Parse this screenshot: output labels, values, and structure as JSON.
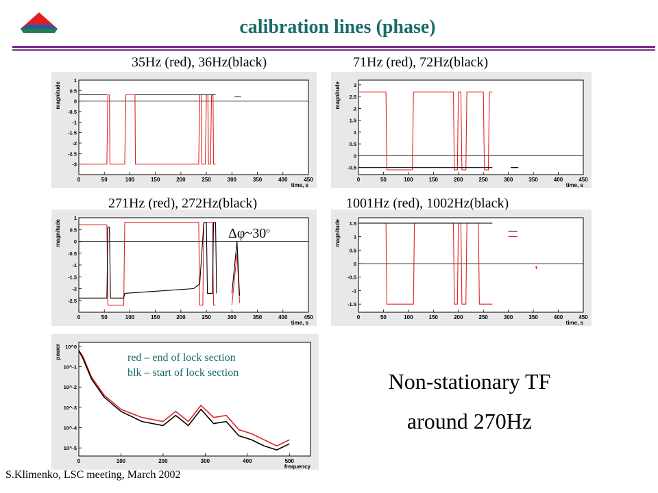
{
  "slide": {
    "title": "calibration lines (phase)",
    "footer": "S.Klimenko, LSC meeting, March 2002",
    "tf_line1": "Non-stationary TF",
    "tf_line2": "around 270Hz",
    "dphi_label": "Δφ~30",
    "dphi_sup": "o",
    "note_line1": "red – end of lock section",
    "note_line2": "blk – start of lock section"
  },
  "captions": [
    "35Hz (red), 36Hz(black)",
    "71Hz (red), 72Hz(black)",
    "271Hz (red), 272Hz(black)",
    "1001Hz (red), 1002Hz(black)"
  ],
  "colors": {
    "red": "#e02020",
    "black": "#000000",
    "title": "#1a6b6b",
    "rule": "#7a2a8c"
  },
  "chart_data": [
    {
      "type": "line",
      "ylabel": "magnitude",
      "xlabel": "time, s",
      "xlim": [
        0,
        450
      ],
      "ylim": [
        -3.5,
        1
      ],
      "xticks": [
        0,
        50,
        100,
        150,
        200,
        250,
        300,
        350,
        400,
        450
      ],
      "yticks": [
        -3,
        -2.5,
        -2,
        -1.5,
        -1,
        -0.5,
        0,
        0.5,
        1
      ],
      "series": [
        {
          "color": "red",
          "points": [
            [
              0,
              -3
            ],
            [
              55,
              -3
            ],
            [
              57,
              0.3
            ],
            [
              60,
              0.3
            ],
            [
              61,
              -3
            ],
            [
              90,
              -3
            ],
            [
              92,
              0.3
            ],
            [
              110,
              0.3
            ],
            [
              111,
              -3
            ],
            [
              235,
              -3
            ],
            [
              237,
              0.3
            ],
            [
              240,
              0.3
            ],
            [
              241,
              -3
            ],
            [
              248,
              -3
            ],
            [
              250,
              0.3
            ],
            [
              253,
              0.3
            ],
            [
              254,
              -3
            ],
            [
              258,
              -3
            ],
            [
              260,
              0.3
            ],
            [
              263,
              0.3
            ],
            [
              264,
              -3
            ],
            [
              268,
              -3
            ],
            [
              305,
              null
            ],
            [
              305,
              0.2
            ],
            [
              318,
              0.2
            ]
          ]
        },
        {
          "color": "black",
          "points": [
            [
              0,
              0.3
            ],
            [
              55,
              0.3
            ],
            [
              60,
              null
            ],
            [
              110,
              0.3
            ],
            [
              235,
              0.3
            ],
            [
              268,
              0.3
            ],
            [
              305,
              null
            ],
            [
              305,
              0.2
            ],
            [
              318,
              0.2
            ]
          ]
        }
      ]
    },
    {
      "type": "line",
      "ylabel": "magnitude",
      "xlabel": "time, s",
      "xlim": [
        0,
        450
      ],
      "ylim": [
        -0.8,
        3.2
      ],
      "xticks": [
        0,
        50,
        100,
        150,
        200,
        250,
        300,
        350,
        400,
        450
      ],
      "yticks": [
        -0.5,
        0,
        0.5,
        1,
        1.5,
        2,
        2.5,
        3
      ],
      "series": [
        {
          "color": "red",
          "points": [
            [
              0,
              2.7
            ],
            [
              55,
              2.7
            ],
            [
              57,
              -0.6
            ],
            [
              108,
              -0.6
            ],
            [
              110,
              2.7
            ],
            [
              190,
              2.7
            ],
            [
              192,
              -0.6
            ],
            [
              198,
              -0.6
            ],
            [
              200,
              2.7
            ],
            [
              205,
              2.7
            ],
            [
              207,
              -0.6
            ],
            [
              215,
              -0.6
            ],
            [
              217,
              2.7
            ],
            [
              250,
              2.7
            ],
            [
              252,
              -0.6
            ],
            [
              260,
              -0.6
            ],
            [
              262,
              2.7
            ],
            [
              268,
              2.7
            ],
            [
              305,
              null
            ],
            [
              305,
              -0.5
            ],
            [
              320,
              -0.5
            ]
          ]
        },
        {
          "color": "black",
          "points": [
            [
              0,
              -0.5
            ],
            [
              55,
              -0.5
            ],
            [
              110,
              -0.5
            ],
            [
              268,
              -0.5
            ],
            [
              305,
              null
            ],
            [
              305,
              -0.5
            ],
            [
              320,
              -0.5
            ]
          ]
        }
      ]
    },
    {
      "type": "line",
      "ylabel": "magnitude",
      "xlabel": "time, s",
      "xlim": [
        0,
        450
      ],
      "ylim": [
        -3,
        1
      ],
      "xticks": [
        0,
        50,
        100,
        150,
        200,
        250,
        300,
        350,
        400,
        450
      ],
      "yticks": [
        -2.5,
        -2,
        -1.5,
        -1,
        -0.5,
        0,
        0.5,
        1
      ],
      "series": [
        {
          "color": "red",
          "points": [
            [
              0,
              0.7
            ],
            [
              55,
              0.7
            ],
            [
              57,
              -2.7
            ],
            [
              88,
              -2.7
            ],
            [
              90,
              0.8
            ],
            [
              235,
              0.8
            ],
            [
              237,
              -2.7
            ],
            [
              243,
              -2.7
            ],
            [
              245,
              0.8
            ],
            [
              262,
              0.8
            ],
            [
              264,
              -2.7
            ],
            [
              268,
              -2.7
            ],
            [
              300,
              null
            ],
            [
              300,
              -2.7
            ],
            [
              310,
              -0.5
            ],
            [
              315,
              -2.6
            ]
          ]
        },
        {
          "color": "black",
          "points": [
            [
              0,
              -2.4
            ],
            [
              55,
              -2.4
            ],
            [
              57,
              0.6
            ],
            [
              60,
              0.6
            ],
            [
              62,
              -2.4
            ],
            [
              88,
              -2.4
            ],
            [
              90,
              -2.2
            ],
            [
              225,
              -2.0
            ],
            [
              237,
              -1.8
            ],
            [
              245,
              0.8
            ],
            [
              250,
              0.8
            ],
            [
              252,
              -2.2
            ],
            [
              262,
              -2.2
            ],
            [
              264,
              0.8
            ],
            [
              268,
              0.8
            ],
            [
              270,
              -2.2
            ],
            [
              300,
              null
            ],
            [
              300,
              -2.2
            ],
            [
              310,
              0.0
            ],
            [
              315,
              -2.3
            ]
          ]
        }
      ]
    },
    {
      "type": "line",
      "ylabel": "magnitude",
      "xlabel": "time, s",
      "xlim": [
        0,
        450
      ],
      "ylim": [
        -1.8,
        1.7
      ],
      "xticks": [
        0,
        50,
        100,
        150,
        200,
        250,
        300,
        350,
        400,
        450
      ],
      "yticks": [
        -1.5,
        -1,
        -0.5,
        0,
        0.5,
        1,
        1.5
      ],
      "series": [
        {
          "color": "red",
          "points": [
            [
              0,
              1.5
            ],
            [
              55,
              1.5
            ],
            [
              57,
              -1.5
            ],
            [
              110,
              -1.5
            ],
            [
              112,
              1.5
            ],
            [
              190,
              1.5
            ],
            [
              192,
              -1.5
            ],
            [
              198,
              -1.5
            ],
            [
              200,
              1.5
            ],
            [
              205,
              1.5
            ],
            [
              207,
              -1.5
            ],
            [
              215,
              -1.5
            ],
            [
              217,
              1.5
            ],
            [
              240,
              1.5
            ],
            [
              242,
              -1.5
            ],
            [
              268,
              -1.5
            ],
            [
              300,
              null
            ],
            [
              300,
              1.0
            ],
            [
              318,
              1.0
            ],
            [
              355,
              null
            ],
            [
              355,
              -0.1
            ],
            [
              356,
              -0.2
            ],
            [
              357,
              -0.1
            ]
          ]
        },
        {
          "color": "black",
          "points": [
            [
              0,
              1.5
            ],
            [
              55,
              1.5
            ],
            [
              110,
              1.5
            ],
            [
              190,
              1.5
            ],
            [
              192,
              1.5
            ],
            [
              250,
              1.5
            ],
            [
              268,
              1.5
            ],
            [
              300,
              null
            ],
            [
              300,
              1.2
            ],
            [
              318,
              1.2
            ]
          ]
        }
      ]
    },
    {
      "type": "line",
      "ylabel": "power",
      "xlabel": "frequency",
      "xlim": [
        0,
        550
      ],
      "ylim": [
        -5.4,
        0.2
      ],
      "yscale": "log",
      "xticks": [
        0,
        100,
        200,
        300,
        400,
        500
      ],
      "yticks": [
        0,
        -1,
        -2,
        -3,
        -4,
        -5
      ],
      "ytick_labels": [
        "10^0",
        "10^-1",
        "10^-2",
        "10^-3",
        "10^-4",
        "10^-5"
      ],
      "series": [
        {
          "color": "red",
          "name": "red – end of lock section",
          "points": [
            [
              0,
              -0.2
            ],
            [
              10,
              -0.5
            ],
            [
              30,
              -1.5
            ],
            [
              60,
              -2.4
            ],
            [
              100,
              -3.1
            ],
            [
              150,
              -3.5
            ],
            [
              200,
              -3.7
            ],
            [
              230,
              -3.2
            ],
            [
              260,
              -3.7
            ],
            [
              290,
              -2.9
            ],
            [
              320,
              -3.5
            ],
            [
              350,
              -3.4
            ],
            [
              380,
              -4.1
            ],
            [
              410,
              -4.3
            ],
            [
              440,
              -4.6
            ],
            [
              470,
              -4.9
            ],
            [
              500,
              -4.6
            ]
          ]
        },
        {
          "color": "black",
          "name": "blk – start of lock section",
          "points": [
            [
              0,
              -0.2
            ],
            [
              10,
              -0.6
            ],
            [
              30,
              -1.6
            ],
            [
              60,
              -2.5
            ],
            [
              100,
              -3.2
            ],
            [
              150,
              -3.7
            ],
            [
              200,
              -3.9
            ],
            [
              230,
              -3.4
            ],
            [
              260,
              -3.9
            ],
            [
              290,
              -3.1
            ],
            [
              320,
              -3.8
            ],
            [
              350,
              -3.7
            ],
            [
              380,
              -4.4
            ],
            [
              410,
              -4.6
            ],
            [
              440,
              -4.9
            ],
            [
              470,
              -5.1
            ],
            [
              500,
              -4.8
            ]
          ]
        }
      ]
    }
  ]
}
